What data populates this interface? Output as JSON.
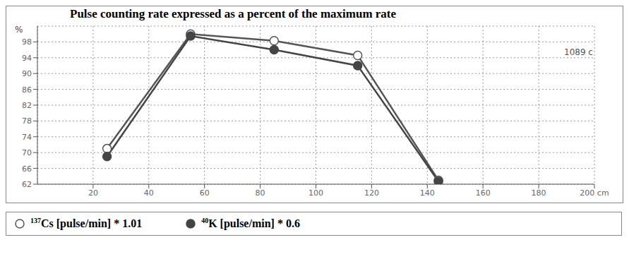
{
  "chart_data": {
    "type": "line",
    "title": "Pulse counting rate expressed as a percent of the maximum rate",
    "y_label": "%",
    "annotation": "1089 c",
    "x": [
      25,
      55,
      85,
      115,
      144
    ],
    "series": [
      {
        "name": "137Cs [pulse/min] * 1.01",
        "color": "#555555",
        "marker": "open_circle",
        "values": [
          71,
          100,
          98.3,
          94.6,
          63
        ]
      },
      {
        "name": "40K [pulse/min] * 0.6",
        "color": "#444444",
        "marker": "circle",
        "values": [
          69,
          99.5,
          96,
          92,
          62.7
        ]
      }
    ],
    "xlim": [
      0,
      200
    ],
    "xticks": [
      20,
      40,
      60,
      80,
      100,
      120,
      140,
      160,
      180,
      {
        "value": 200,
        "label": "200 cm"
      }
    ],
    "ylim": [
      62,
      102
    ],
    "yticks": [
      62,
      66,
      70,
      74,
      78,
      82,
      86,
      90,
      94,
      98
    ],
    "grid": true
  }
}
